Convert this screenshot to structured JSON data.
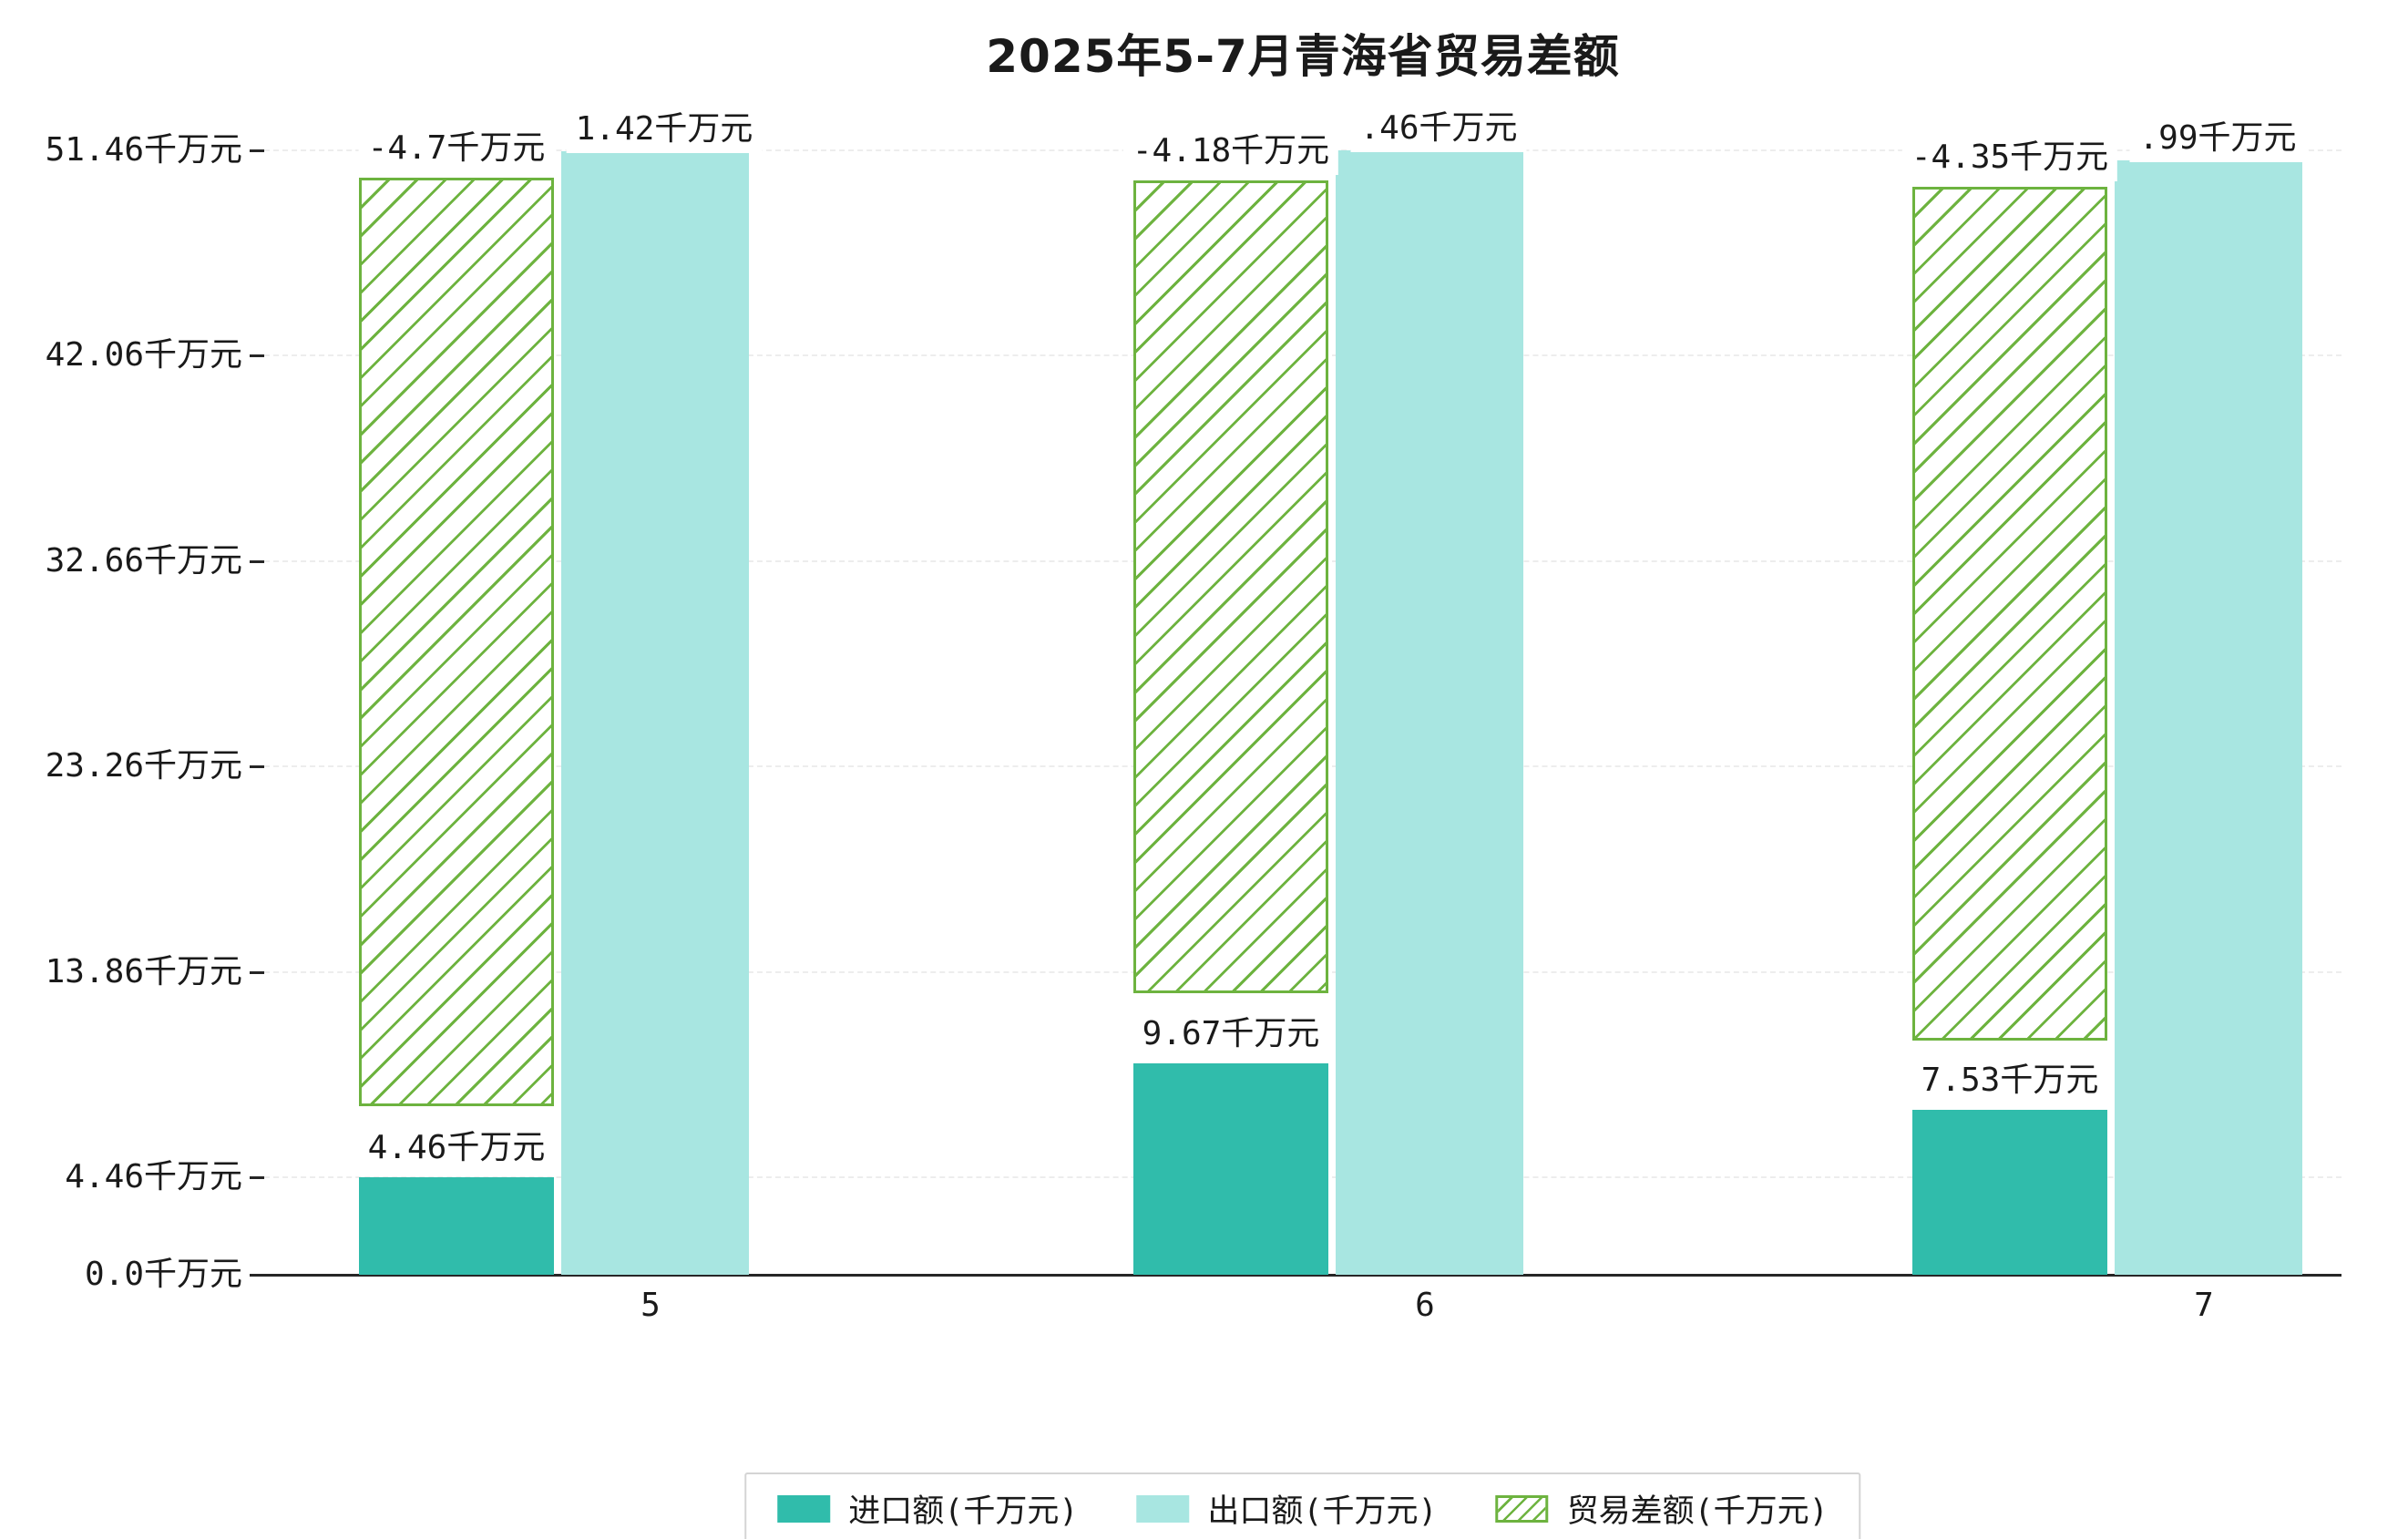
{
  "chart_data": {
    "type": "bar",
    "title": "2025年5-7月青海省贸易差额",
    "unit": "千万元",
    "categories": [
      "5",
      "6",
      "7"
    ],
    "series": [
      {
        "name": "进口额(千万元)",
        "style": "solid",
        "color": "#30bcab",
        "values": [
          4.46,
          9.67,
          7.53
        ],
        "value_labels": [
          "4.46千万元",
          "9.67千万元",
          "7.53千万元"
        ]
      },
      {
        "name": "出口额(千万元)",
        "style": "solid",
        "color": "#a8e6e1",
        "values": [
          51.42,
          51.46,
          50.99
        ],
        "value_labels_visible": [
          "1.42千万元",
          ".46千万元",
          ".99千万元"
        ]
      },
      {
        "name": "贸易差额(千万元)",
        "style": "hatched",
        "hatch_color": "#6db33f",
        "values": [
          -4.7,
          -4.18,
          -4.35
        ],
        "value_labels": [
          "-4.7千万元",
          "-4.18千万元",
          "-4.35千万元"
        ],
        "draw_spans": [
          [
            7.7,
            50.2
          ],
          [
            12.9,
            50.1
          ],
          [
            10.7,
            49.8
          ]
        ]
      }
    ],
    "ylim": [
      0,
      51.46
    ],
    "yticks": [
      {
        "label": "0.0千万元",
        "value": 0.0
      },
      {
        "label": "4.46千万元",
        "value": 4.46
      },
      {
        "label": "13.86千万元",
        "value": 13.86
      },
      {
        "label": "23.26千万元",
        "value": 23.26
      },
      {
        "label": "32.66千万元",
        "value": 32.66
      },
      {
        "label": "42.06千万元",
        "value": 42.06
      },
      {
        "label": "51.46千万元",
        "value": 51.46
      }
    ],
    "grid": true,
    "legend_position": "bottom-center",
    "legend": [
      "进口额(千万元)",
      "出口额(千万元)",
      "贸易差额(千万元)"
    ]
  }
}
